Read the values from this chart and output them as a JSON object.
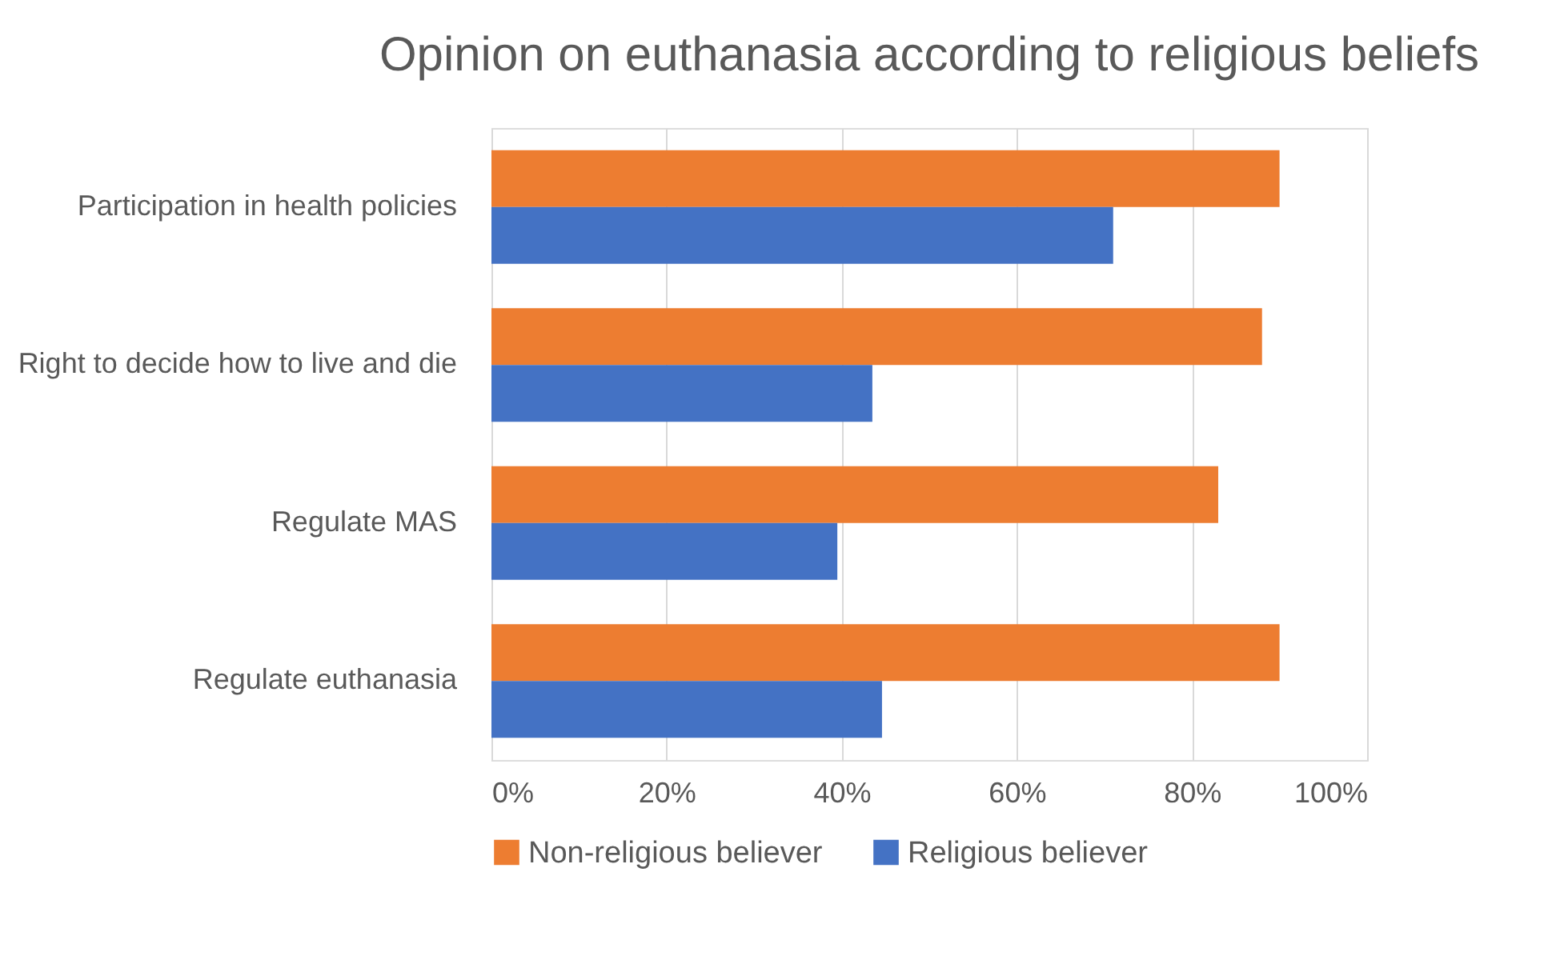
{
  "chart_data": {
    "type": "bar",
    "orientation": "horizontal",
    "title": "Opinion on euthanasia according to religious beliefs",
    "categories": [
      "Participation in health policies",
      "Right to decide how to live and die",
      "Regulate MAS",
      "Regulate euthanasia"
    ],
    "series": [
      {
        "name": "Non-religious believer",
        "color": "#ed7d31",
        "values": [
          90,
          88,
          83,
          90
        ]
      },
      {
        "name": "Religious believer",
        "color": "#4472c4",
        "values": [
          71,
          43.5,
          39.5,
          44.6
        ]
      }
    ],
    "xlim": [
      0,
      100
    ],
    "xticks": [
      {
        "value": 0,
        "label": "0%"
      },
      {
        "value": 20,
        "label": "20%"
      },
      {
        "value": 40,
        "label": "40%"
      },
      {
        "value": 60,
        "label": "60%"
      },
      {
        "value": 80,
        "label": "80%"
      },
      {
        "value": 100,
        "label": "100%"
      }
    ],
    "grid": "x",
    "legend": "bottom"
  }
}
